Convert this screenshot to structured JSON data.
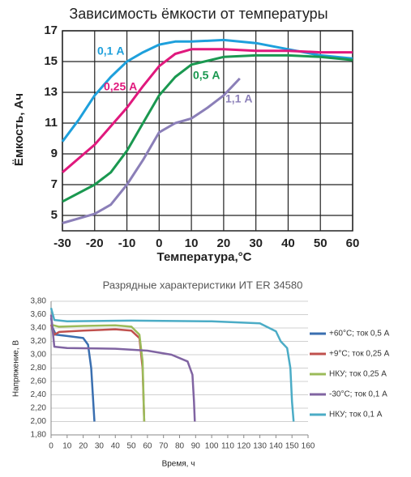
{
  "chart_data": [
    {
      "type": "line",
      "title": "Зависимость ёмкости от температуры",
      "xlabel": "Температура,°C",
      "ylabel": "Ёмкость,  Ач",
      "xlim": [
        -30,
        60
      ],
      "xticks": [
        -30,
        -20,
        -10,
        0,
        10,
        20,
        30,
        40,
        50,
        60
      ],
      "ylim": [
        4,
        17
      ],
      "yticks": [
        5,
        7,
        9,
        11,
        13,
        15,
        17
      ],
      "grid": true,
      "series": [
        {
          "name": "0,1 А",
          "color": "#1ea0dc",
          "x": [
            -30,
            -25,
            -20,
            -15,
            -10,
            -5,
            0,
            5,
            10,
            20,
            30,
            40,
            50,
            60
          ],
          "values": [
            9.8,
            11.2,
            12.8,
            14.0,
            15.0,
            15.6,
            16.1,
            16.3,
            16.3,
            16.4,
            16.2,
            15.8,
            15.4,
            15.2
          ]
        },
        {
          "name": "0,25 А",
          "color": "#e0197d",
          "x": [
            -30,
            -20,
            -10,
            -5,
            0,
            5,
            10,
            20,
            30,
            40,
            50,
            60
          ],
          "values": [
            7.8,
            9.6,
            12.0,
            13.4,
            14.7,
            15.5,
            15.8,
            15.8,
            15.7,
            15.7,
            15.6,
            15.6
          ]
        },
        {
          "name": "0,5 А",
          "color": "#1a9850",
          "x": [
            -30,
            -20,
            -15,
            -10,
            -5,
            0,
            5,
            10,
            20,
            30,
            40,
            50,
            60
          ],
          "values": [
            5.9,
            7.0,
            7.8,
            9.2,
            11.0,
            12.8,
            14.0,
            14.8,
            15.3,
            15.4,
            15.4,
            15.3,
            15.1
          ]
        },
        {
          "name": "1,1 А",
          "color": "#8b7fb8",
          "x": [
            -30,
            -20,
            -15,
            -10,
            -5,
            0,
            5,
            10,
            15,
            20,
            25
          ],
          "values": [
            4.5,
            5.1,
            5.7,
            7.0,
            8.6,
            10.4,
            11.0,
            11.3,
            12.0,
            12.8,
            13.9
          ]
        }
      ]
    },
    {
      "type": "line",
      "title": "Разрядные характеристики ИТ ER 34580",
      "xlabel": "Время, ч",
      "ylabel": "Напряжение, В",
      "xlim": [
        0,
        160
      ],
      "xticks": [
        0,
        10,
        20,
        30,
        40,
        50,
        60,
        70,
        80,
        90,
        100,
        110,
        120,
        130,
        140,
        150,
        160
      ],
      "ylim": [
        1.8,
        3.8
      ],
      "yticks": [
        {
          "value": 1.8,
          "label": "1,80"
        },
        {
          "value": 2.0,
          "label": "2,00"
        },
        {
          "value": 2.2,
          "label": "2,20"
        },
        {
          "value": 2.4,
          "label": "2,40"
        },
        {
          "value": 2.6,
          "label": "2,60"
        },
        {
          "value": 2.8,
          "label": "2,80"
        },
        {
          "value": 3.0,
          "label": "3,00"
        },
        {
          "value": 3.2,
          "label": "3,20"
        },
        {
          "value": 3.4,
          "label": "3,40"
        },
        {
          "value": 3.6,
          "label": "3,60"
        },
        {
          "value": 3.8,
          "label": "3,80"
        }
      ],
      "grid": true,
      "legend": "right",
      "series": [
        {
          "name": "+60°C; ток 0,5 А",
          "color": "#3a6fb0",
          "x": [
            0,
            1,
            3,
            10,
            20,
            23,
            25,
            26,
            27
          ],
          "values": [
            3.55,
            3.4,
            3.3,
            3.28,
            3.25,
            3.15,
            2.8,
            2.4,
            2.0
          ]
        },
        {
          "name": "+9°C; ток 0,25 А",
          "color": "#c0504d",
          "x": [
            0,
            2,
            5,
            20,
            40,
            50,
            55,
            57,
            58
          ],
          "values": [
            3.45,
            3.3,
            3.34,
            3.36,
            3.38,
            3.36,
            3.25,
            2.8,
            2.0
          ]
        },
        {
          "name": "НКУ; ток 0,25 А",
          "color": "#9bbb59",
          "x": [
            0,
            5,
            20,
            40,
            50,
            55,
            57,
            58
          ],
          "values": [
            3.45,
            3.42,
            3.43,
            3.44,
            3.42,
            3.3,
            2.9,
            2.0
          ]
        },
        {
          "name": "-30°C; ток 0,1 А",
          "color": "#8064a2",
          "x": [
            0,
            2,
            10,
            40,
            60,
            75,
            85,
            88,
            89,
            89.5
          ],
          "values": [
            3.6,
            3.12,
            3.1,
            3.09,
            3.06,
            3.0,
            2.9,
            2.7,
            2.3,
            2.0
          ]
        },
        {
          "name": "НКУ; ток 0,1 А",
          "color": "#4bacc6",
          "x": [
            0,
            2,
            10,
            50,
            100,
            130,
            140,
            143,
            147,
            149,
            150,
            151
          ],
          "values": [
            3.7,
            3.52,
            3.5,
            3.51,
            3.5,
            3.47,
            3.35,
            3.2,
            3.1,
            2.8,
            2.3,
            2.0
          ]
        }
      ]
    }
  ]
}
